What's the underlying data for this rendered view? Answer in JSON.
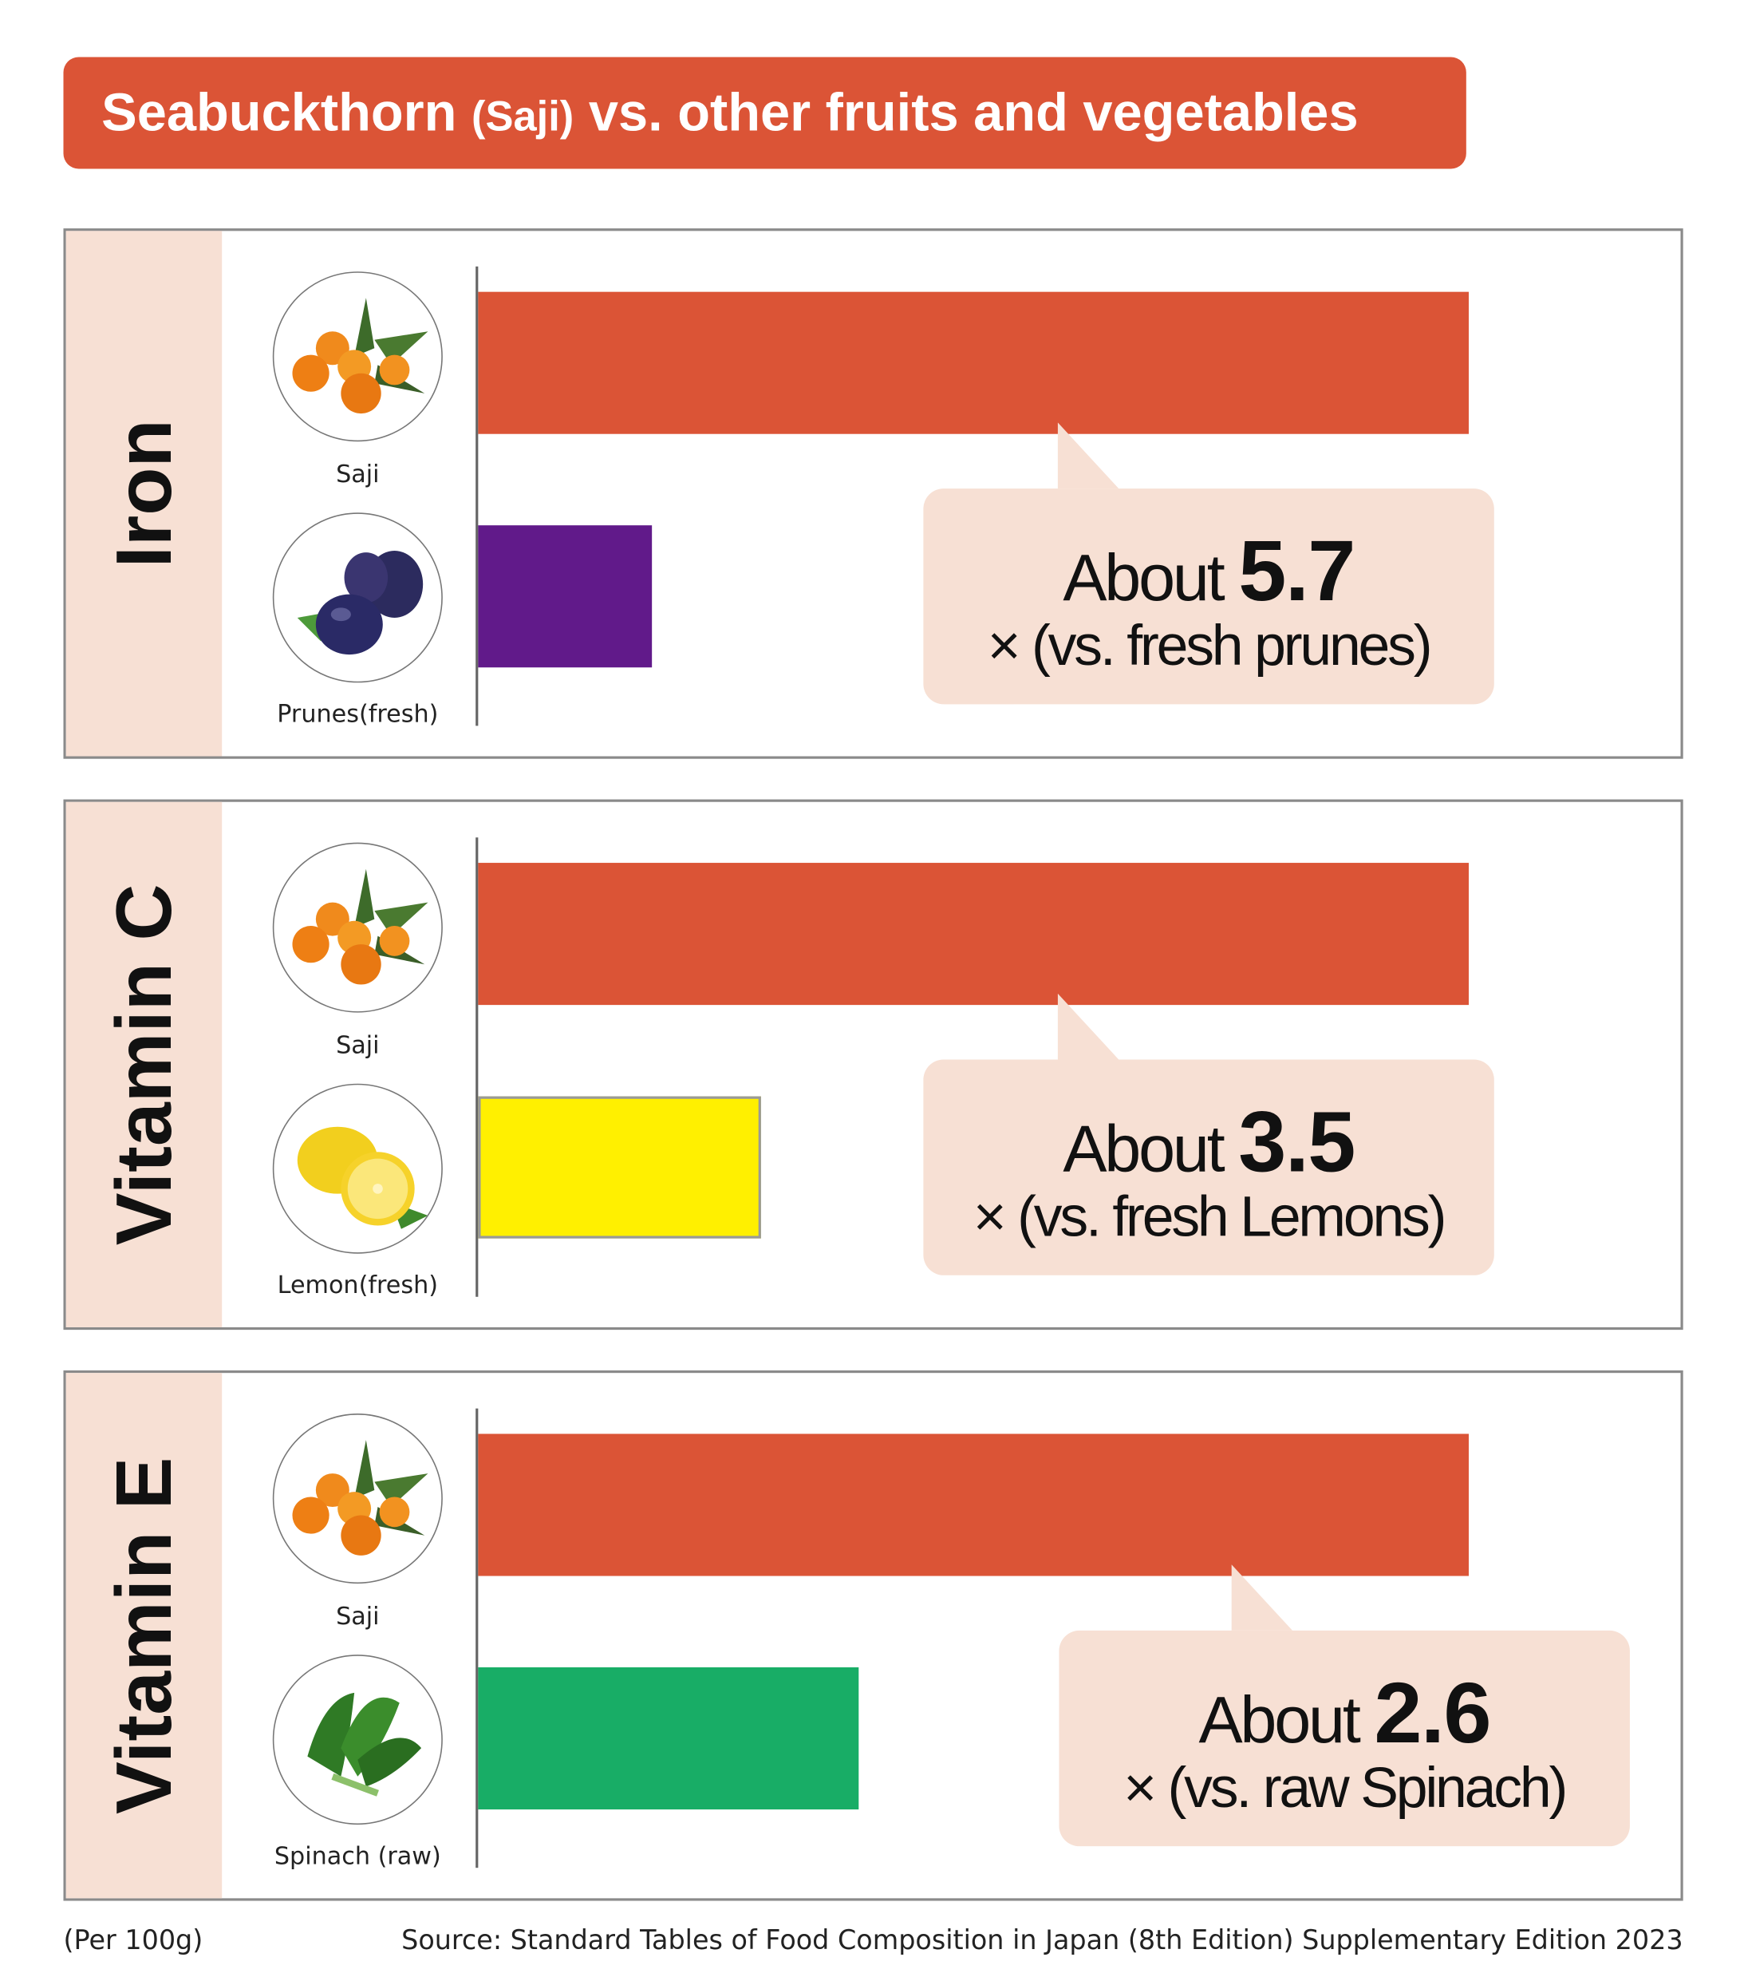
{
  "title": {
    "main": "Seabuckthorn",
    "paren": "(Saji)",
    "rest": "vs. other fruits and vegetables"
  },
  "colors": {
    "saji": "#DB5436",
    "prunes": "#611A8A",
    "lemon": "#FFF000",
    "spinach": "#18AD66",
    "callout_bg": "#F7E0D4"
  },
  "chart_data": [
    {
      "type": "bar",
      "nutrient": "Iron",
      "categories": [
        "Saji",
        "Prunes(fresh)"
      ],
      "values": [
        5.7,
        1
      ],
      "ratio": "5.7",
      "callout": {
        "prefix": "About",
        "suffix": "× (vs. fresh prunes)"
      }
    },
    {
      "type": "bar",
      "nutrient": "Vitamin C",
      "categories": [
        "Saji",
        "Lemon(fresh)"
      ],
      "values": [
        3.5,
        1
      ],
      "ratio": "3.5",
      "callout": {
        "prefix": "About",
        "suffix": "× (vs. fresh Lemons)"
      }
    },
    {
      "type": "bar",
      "nutrient": "Vitamin E",
      "categories": [
        "Saji",
        "Spinach (raw)"
      ],
      "values": [
        2.6,
        1
      ],
      "ratio": "2.6",
      "callout": {
        "prefix": "About",
        "suffix": "× (vs. raw Spinach)"
      }
    }
  ],
  "footer": {
    "unit": "(Per 100g)",
    "source": "Source: Standard Tables of Food Composition in Japan (8th Edition) Supplementary Edition 2023"
  }
}
